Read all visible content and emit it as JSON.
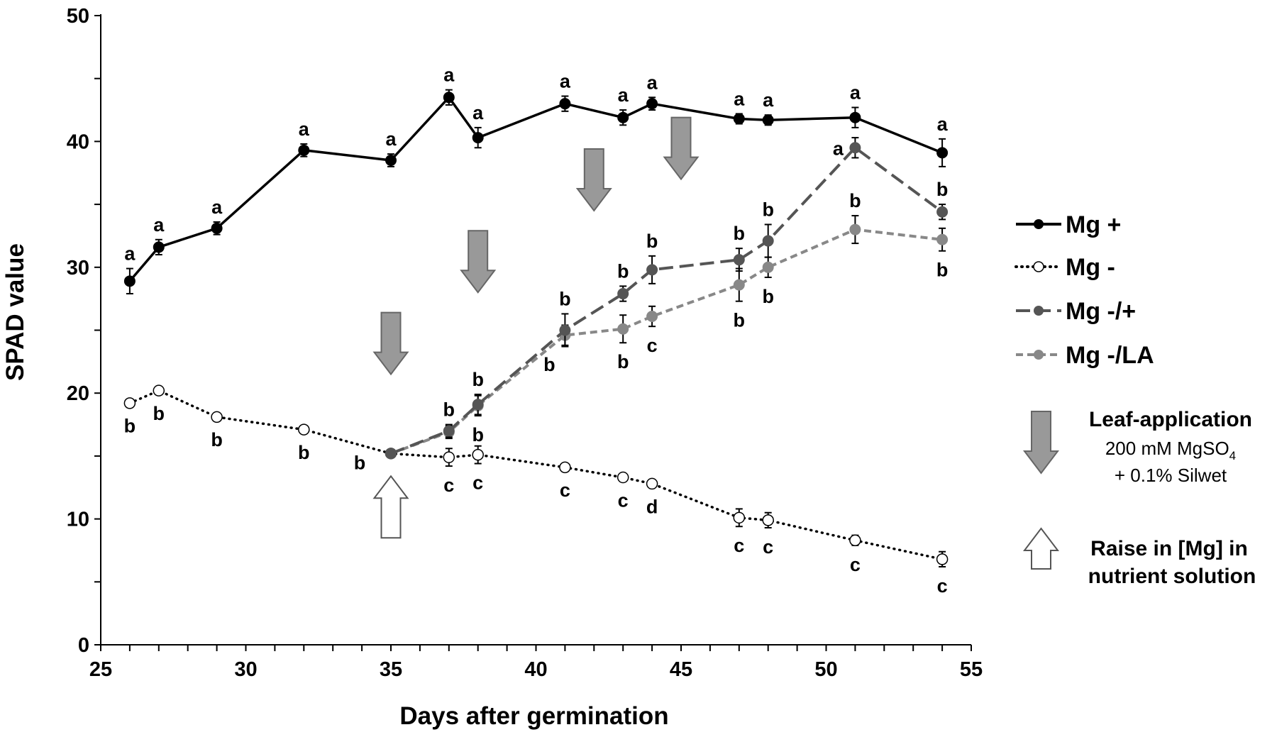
{
  "chart_data": {
    "type": "line",
    "title": "",
    "xlabel": "Days after germination",
    "ylabel": "SPAD value",
    "xlim": [
      25,
      55
    ],
    "ylim": [
      0,
      50
    ],
    "x_ticks": [
      "25",
      "30",
      "35",
      "40",
      "45",
      "50",
      "55"
    ],
    "y_ticks": [
      "0",
      "10",
      "20",
      "30",
      "40",
      "50"
    ],
    "series": [
      {
        "name": "Mg +",
        "color": "#000000",
        "line": "solid",
        "marker": "filled",
        "points": [
          {
            "x": 26,
            "y": 28.9,
            "err": 1.0,
            "sig": "a"
          },
          {
            "x": 27,
            "y": 31.6,
            "err": 0.6,
            "sig": "a"
          },
          {
            "x": 29,
            "y": 33.1,
            "err": 0.5,
            "sig": "a"
          },
          {
            "x": 32,
            "y": 39.3,
            "err": 0.5,
            "sig": "a"
          },
          {
            "x": 35,
            "y": 38.5,
            "err": 0.5,
            "sig": "a"
          },
          {
            "x": 37,
            "y": 43.5,
            "err": 0.6,
            "sig": "a"
          },
          {
            "x": 38,
            "y": 40.3,
            "err": 0.8,
            "sig": "a"
          },
          {
            "x": 41,
            "y": 43.0,
            "err": 0.6,
            "sig": "a"
          },
          {
            "x": 43,
            "y": 41.9,
            "err": 0.6,
            "sig": "a"
          },
          {
            "x": 44,
            "y": 43.0,
            "err": 0.5,
            "sig": "a"
          },
          {
            "x": 47,
            "y": 41.8,
            "err": 0.4,
            "sig": "a"
          },
          {
            "x": 48,
            "y": 41.7,
            "err": 0.4,
            "sig": "a"
          },
          {
            "x": 51,
            "y": 41.9,
            "err": 0.8,
            "sig": "a"
          },
          {
            "x": 54,
            "y": 39.1,
            "err": 1.1,
            "sig": "a"
          }
        ]
      },
      {
        "name": "Mg -",
        "color": "#000000",
        "line": "dotted",
        "marker": "open",
        "points": [
          {
            "x": 26,
            "y": 19.2,
            "err": 0.3,
            "sig": "b"
          },
          {
            "x": 27,
            "y": 20.2,
            "err": 0.3,
            "sig": "b"
          },
          {
            "x": 29,
            "y": 18.1,
            "err": 0.3,
            "sig": "b"
          },
          {
            "x": 32,
            "y": 17.1,
            "err": 0.3,
            "sig": "b"
          },
          {
            "x": 35,
            "y": 15.2,
            "err": 0.3,
            "sig": "b"
          },
          {
            "x": 37,
            "y": 14.9,
            "err": 0.7,
            "sig": "c"
          },
          {
            "x": 38,
            "y": 15.1,
            "err": 0.7,
            "sig": "c"
          },
          {
            "x": 41,
            "y": 14.1,
            "err": 0.3,
            "sig": "c"
          },
          {
            "x": 43,
            "y": 13.3,
            "err": 0.3,
            "sig": "c"
          },
          {
            "x": 44,
            "y": 12.8,
            "err": 0.3,
            "sig": "d"
          },
          {
            "x": 47,
            "y": 10.1,
            "err": 0.7,
            "sig": "c"
          },
          {
            "x": 48,
            "y": 9.9,
            "err": 0.6,
            "sig": "c"
          },
          {
            "x": 51,
            "y": 8.3,
            "err": 0.4,
            "sig": "c"
          },
          {
            "x": 54,
            "y": 6.8,
            "err": 0.6,
            "sig": "c"
          }
        ]
      },
      {
        "name": "Mg -/+",
        "color": "#555555",
        "line": "long-dash",
        "marker": "filled",
        "points": [
          {
            "x": 35,
            "y": 15.2,
            "err": 0.3,
            "sig": ""
          },
          {
            "x": 37,
            "y": 17.0,
            "err": 0.5,
            "sig": "b"
          },
          {
            "x": 38,
            "y": 19.1,
            "err": 0.8,
            "sig": "b"
          },
          {
            "x": 41,
            "y": 25.0,
            "err": 1.3,
            "sig": "b"
          },
          {
            "x": 43,
            "y": 27.9,
            "err": 0.6,
            "sig": "b"
          },
          {
            "x": 44,
            "y": 29.8,
            "err": 1.1,
            "sig": "b"
          },
          {
            "x": 47,
            "y": 30.6,
            "err": 0.9,
            "sig": "b"
          },
          {
            "x": 48,
            "y": 32.1,
            "err": 1.3,
            "sig": "b"
          },
          {
            "x": 51,
            "y": 39.5,
            "err": 0.8,
            "sig": "a"
          },
          {
            "x": 54,
            "y": 34.4,
            "err": 0.6,
            "sig": "b"
          }
        ]
      },
      {
        "name": "Mg -/LA",
        "color": "#888888",
        "line": "short-dash",
        "marker": "filled",
        "points": [
          {
            "x": 35,
            "y": 15.2,
            "err": 0.3,
            "sig": ""
          },
          {
            "x": 37,
            "y": 16.9,
            "err": 0.5,
            "sig": ""
          },
          {
            "x": 38,
            "y": 19.0,
            "err": 0.8,
            "sig": "b"
          },
          {
            "x": 41,
            "y": 24.6,
            "err": 0.8,
            "sig": "b"
          },
          {
            "x": 43,
            "y": 25.1,
            "err": 1.1,
            "sig": "b"
          },
          {
            "x": 44,
            "y": 26.1,
            "err": 0.8,
            "sig": "c"
          },
          {
            "x": 47,
            "y": 28.6,
            "err": 1.3,
            "sig": "b"
          },
          {
            "x": 48,
            "y": 30.0,
            "err": 0.8,
            "sig": "b"
          },
          {
            "x": 51,
            "y": 33.0,
            "err": 1.1,
            "sig": "b"
          },
          {
            "x": 54,
            "y": 32.2,
            "err": 0.9,
            "sig": "b"
          }
        ]
      }
    ],
    "leaf_application_days": [
      {
        "x": 35,
        "y": 21.5
      },
      {
        "x": 38,
        "y": 28.0
      },
      {
        "x": 42,
        "y": 34.5
      },
      {
        "x": 45,
        "y": 37.0
      }
    ],
    "raise_mg_days": [
      {
        "x": 35,
        "y": 13.4
      }
    ],
    "legend_position": "right",
    "annotations": {
      "leaf_title": "Leaf-application",
      "leaf_line1": "200 mM MgSO",
      "leaf_line1_sub": "4",
      "leaf_line2": "+ 0.1% Silwet",
      "raise_line1": "Raise in [Mg] in",
      "raise_line2": "nutrient solution"
    }
  }
}
